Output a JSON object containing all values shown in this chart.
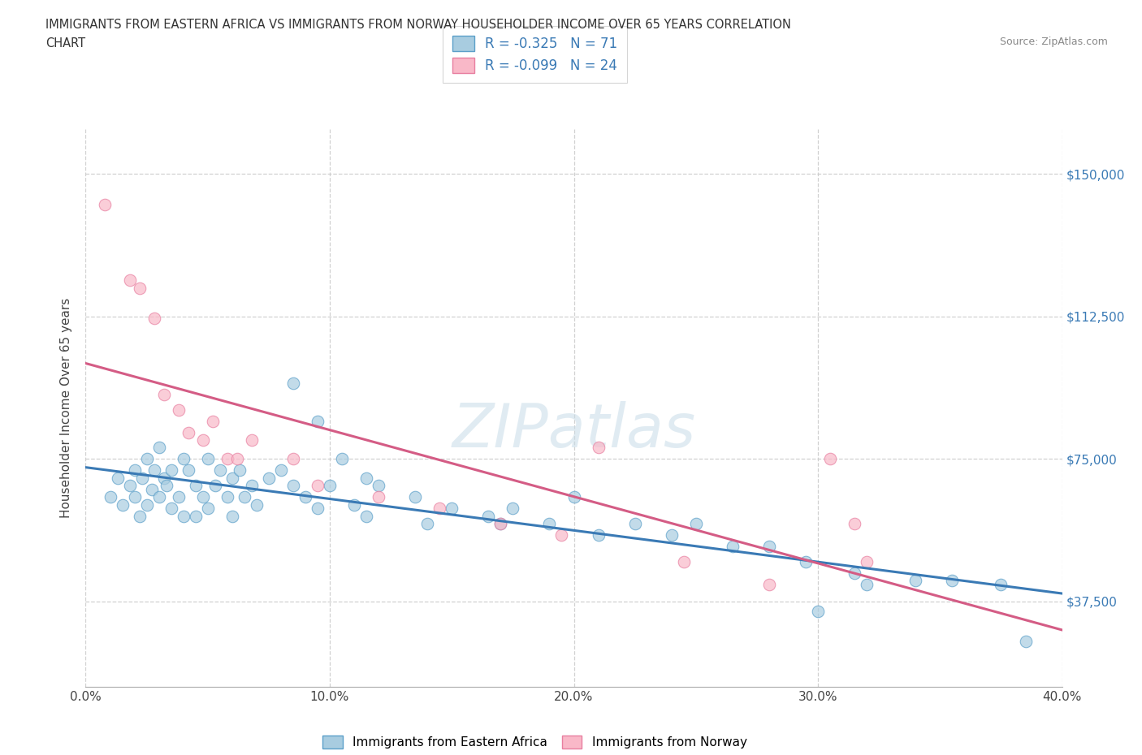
{
  "title_line1": "IMMIGRANTS FROM EASTERN AFRICA VS IMMIGRANTS FROM NORWAY HOUSEHOLDER INCOME OVER 65 YEARS CORRELATION",
  "title_line2": "CHART",
  "source": "Source: ZipAtlas.com",
  "ylabel_label": "Householder Income Over 65 years",
  "xmin": 0.0,
  "xmax": 40.0,
  "ymin": 15000,
  "ymax": 162000,
  "yticks": [
    37500,
    75000,
    112500,
    150000
  ],
  "xticks": [
    0.0,
    10.0,
    20.0,
    30.0,
    40.0
  ],
  "blue_R": -0.325,
  "blue_N": 71,
  "pink_R": -0.099,
  "pink_N": 24,
  "blue_fill": "#a8cce0",
  "blue_edge": "#5b9fc9",
  "blue_line": "#3a7ab5",
  "pink_fill": "#f9b8c8",
  "pink_edge": "#e87fa0",
  "pink_line": "#d45c85",
  "watermark_color": "#d8e8f0",
  "watermark": "ZIPatlas",
  "legend_label_blue": "Immigrants from Eastern Africa",
  "legend_label_pink": "Immigrants from Norway",
  "blue_x": [
    1.0,
    1.3,
    1.5,
    1.8,
    2.0,
    2.0,
    2.2,
    2.3,
    2.5,
    2.5,
    2.7,
    2.8,
    3.0,
    3.0,
    3.2,
    3.3,
    3.5,
    3.5,
    3.8,
    4.0,
    4.0,
    4.2,
    4.5,
    4.5,
    4.8,
    5.0,
    5.0,
    5.3,
    5.5,
    5.8,
    6.0,
    6.0,
    6.3,
    6.5,
    6.8,
    7.0,
    7.5,
    8.0,
    8.5,
    9.0,
    9.5,
    10.0,
    11.0,
    11.5,
    12.0,
    13.5,
    14.0,
    15.0,
    16.5,
    17.0,
    17.5,
    19.0,
    20.0,
    21.0,
    22.5,
    24.0,
    25.0,
    26.5,
    28.0,
    29.5,
    31.5,
    32.0,
    34.0,
    35.5,
    30.0,
    37.5,
    38.5,
    8.5,
    9.5,
    10.5,
    11.5
  ],
  "blue_y": [
    65000,
    70000,
    63000,
    68000,
    72000,
    65000,
    60000,
    70000,
    75000,
    63000,
    67000,
    72000,
    78000,
    65000,
    70000,
    68000,
    72000,
    62000,
    65000,
    75000,
    60000,
    72000,
    68000,
    60000,
    65000,
    75000,
    62000,
    68000,
    72000,
    65000,
    70000,
    60000,
    72000,
    65000,
    68000,
    63000,
    70000,
    72000,
    68000,
    65000,
    62000,
    68000,
    63000,
    60000,
    68000,
    65000,
    58000,
    62000,
    60000,
    58000,
    62000,
    58000,
    65000,
    55000,
    58000,
    55000,
    58000,
    52000,
    52000,
    48000,
    45000,
    42000,
    43000,
    43000,
    35000,
    42000,
    27000,
    95000,
    85000,
    75000,
    70000
  ],
  "pink_x": [
    0.8,
    1.8,
    2.2,
    2.8,
    3.2,
    3.8,
    4.2,
    4.8,
    5.2,
    5.8,
    6.2,
    6.8,
    8.5,
    9.5,
    12.0,
    14.5,
    17.0,
    19.5,
    21.0,
    24.5,
    28.0,
    30.5,
    31.5,
    32.0
  ],
  "pink_y": [
    142000,
    122000,
    120000,
    112000,
    92000,
    88000,
    82000,
    80000,
    85000,
    75000,
    75000,
    80000,
    75000,
    68000,
    65000,
    62000,
    58000,
    55000,
    78000,
    48000,
    42000,
    75000,
    58000,
    48000
  ]
}
